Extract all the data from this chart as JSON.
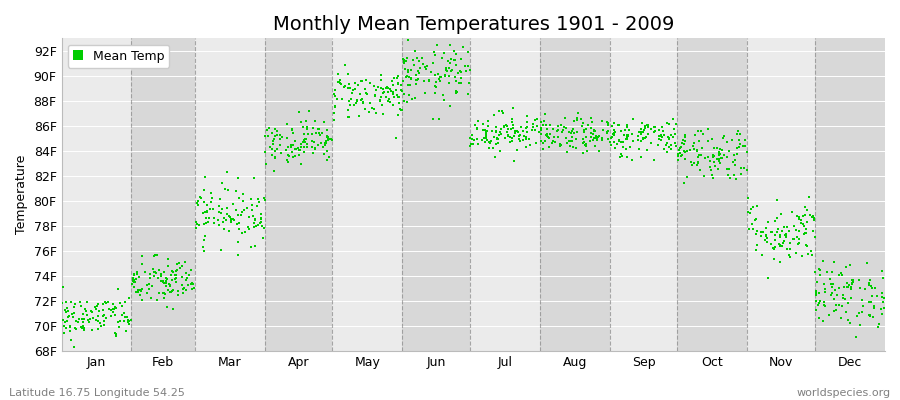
{
  "title": "Monthly Mean Temperatures 1901 - 2009",
  "ylabel": "Temperature",
  "xlabel_bottom": "Latitude 16.75 Longitude 54.25",
  "watermark": "worldspecies.org",
  "ylim": [
    68,
    93
  ],
  "yticks": [
    68,
    70,
    72,
    74,
    76,
    78,
    80,
    82,
    84,
    86,
    88,
    90,
    92
  ],
  "ytick_labels": [
    "68F",
    "70F",
    "72F",
    "74F",
    "76F",
    "78F",
    "80F",
    "82F",
    "84F",
    "86F",
    "88F",
    "90F",
    "92F"
  ],
  "month_names": [
    "Jan",
    "Feb",
    "Mar",
    "Apr",
    "May",
    "Jun",
    "Jul",
    "Aug",
    "Sep",
    "Oct",
    "Nov",
    "Dec"
  ],
  "mean_temps_F": [
    70.7,
    73.5,
    79.0,
    84.8,
    88.5,
    90.0,
    85.5,
    85.2,
    85.1,
    83.8,
    77.5,
    72.5
  ],
  "std_temps_F": [
    0.9,
    1.0,
    1.2,
    0.9,
    1.0,
    1.2,
    0.8,
    0.7,
    0.8,
    1.1,
    1.3,
    1.3
  ],
  "n_years": 109,
  "dot_color": "#00cc00",
  "dot_size": 2.5,
  "bg_color_light": "#ebebeb",
  "bg_color_dark": "#d8d8d8",
  "grid_color": "#888888",
  "title_fontsize": 14,
  "axis_fontsize": 9,
  "legend_fontsize": 9,
  "fig_width": 9.0,
  "fig_height": 4.0,
  "dpi": 100
}
